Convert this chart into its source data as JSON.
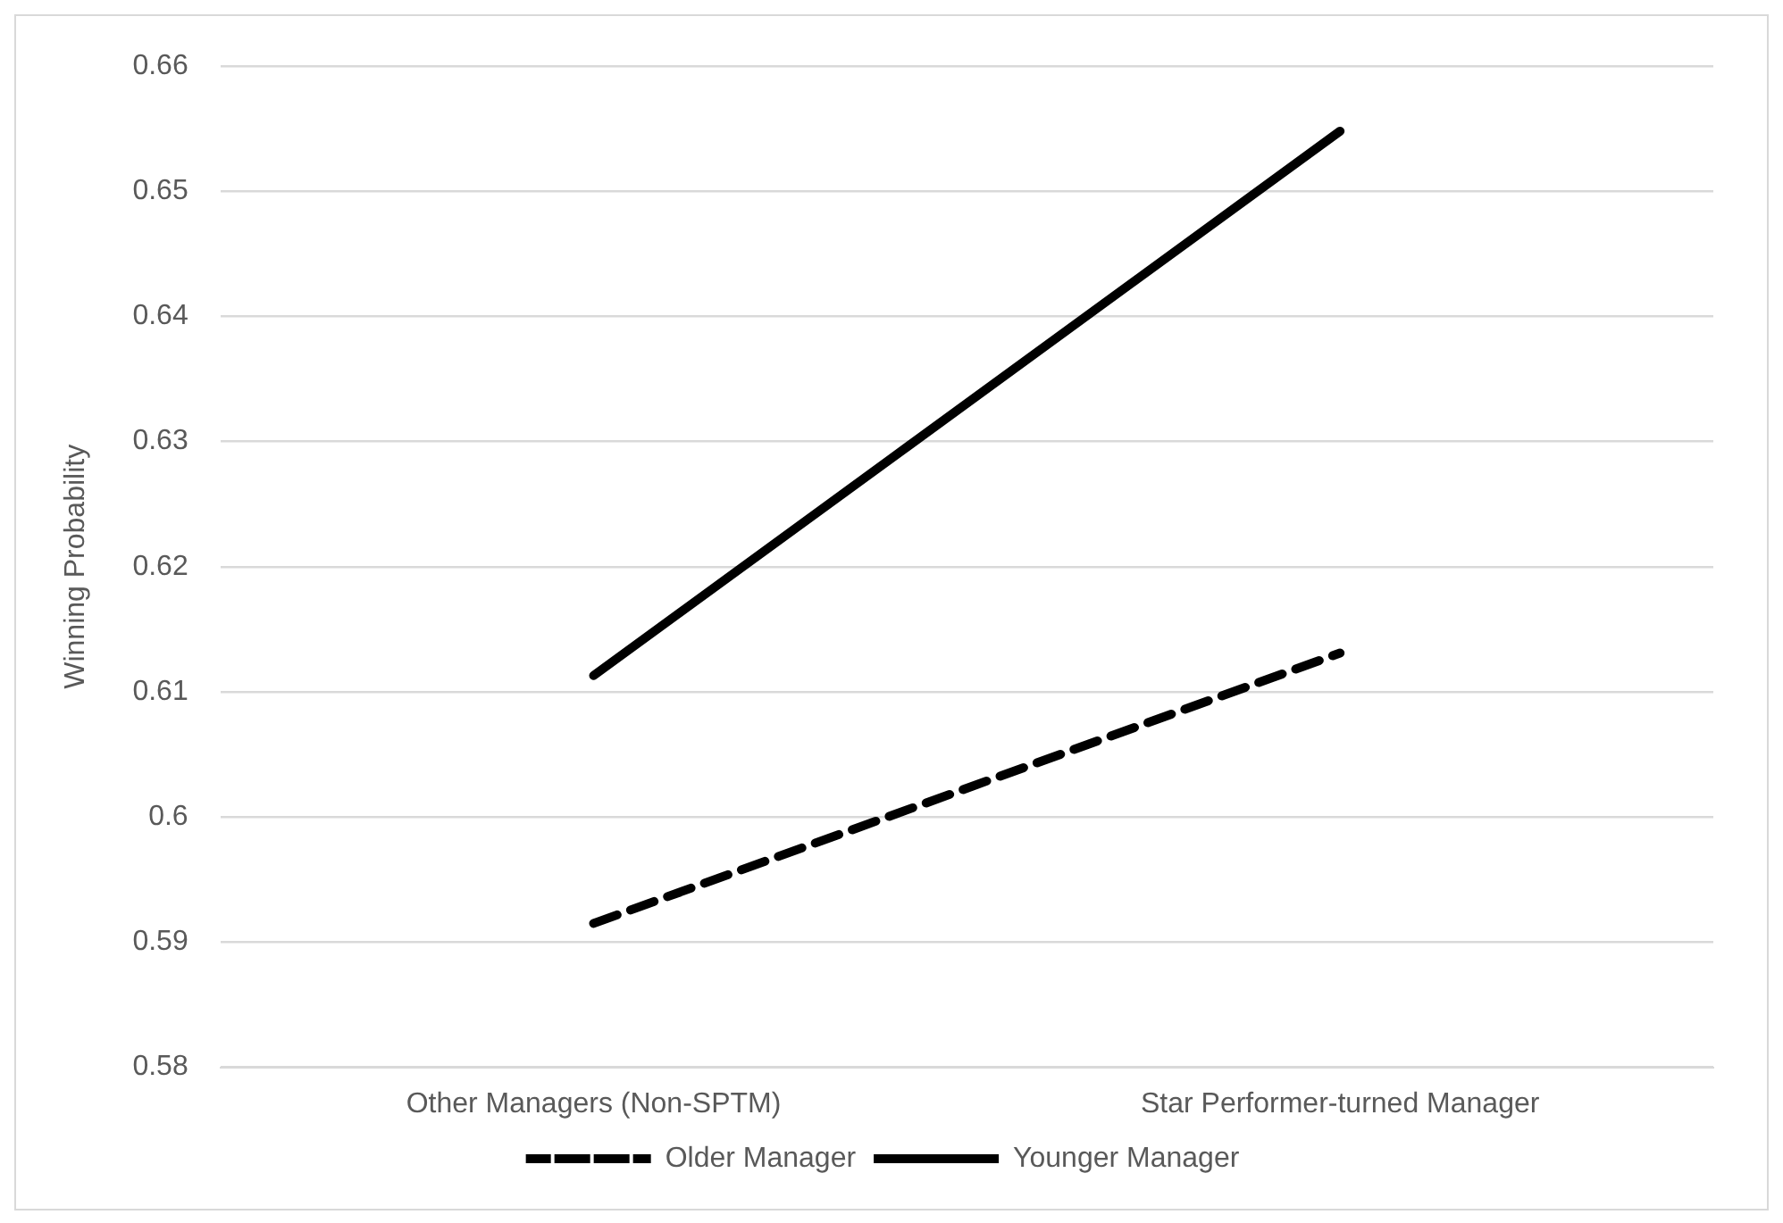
{
  "chart_data": {
    "type": "line",
    "ylabel": "Winning Probability",
    "categories": [
      "Other Managers (Non-SPTM)",
      "Star Performer-turned Manager"
    ],
    "series": [
      {
        "name": "Older Manager",
        "color": "#000000",
        "values": [
          0.5915,
          0.6131
        ],
        "line_style": "dashed"
      },
      {
        "name": "Younger Manager",
        "color": "#000000",
        "values": [
          0.6113,
          0.6548
        ],
        "line_style": "solid"
      }
    ],
    "ylim": [
      0.58,
      0.66
    ],
    "yticks": [
      0.58,
      0.59,
      0.6,
      0.61,
      0.62,
      0.63,
      0.64,
      0.65,
      0.66
    ],
    "grid": "y",
    "legend": "bottom",
    "marker": "none"
  }
}
